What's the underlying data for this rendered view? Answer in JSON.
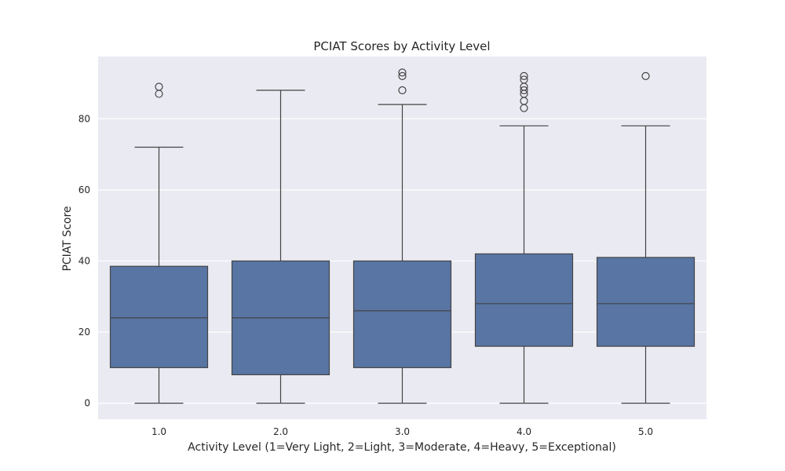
{
  "chart_data": {
    "type": "box",
    "title": "PCIAT Scores by Activity Level",
    "xlabel": "Activity Level (1=Very Light, 2=Light, 3=Moderate, 4=Heavy, 5=Exceptional)",
    "ylabel": "PCIAT Score",
    "categories": [
      "1.0",
      "2.0",
      "3.0",
      "4.0",
      "5.0"
    ],
    "ylim": [
      -4.5,
      97.5
    ],
    "yticks": [
      0,
      20,
      40,
      60,
      80
    ],
    "grid": true,
    "colors": {
      "box": "#5875a4",
      "line": "#444444",
      "background": "#eaeaf2",
      "grid": "#ffffff"
    },
    "boxes": [
      {
        "category": "1.0",
        "whisker_low": 0,
        "q1": 10,
        "median": 24,
        "q3": 38.5,
        "whisker_high": 72,
        "outliers": [
          87,
          89
        ]
      },
      {
        "category": "2.0",
        "whisker_low": 0,
        "q1": 8,
        "median": 24,
        "q3": 40,
        "whisker_high": 88,
        "outliers": []
      },
      {
        "category": "3.0",
        "whisker_low": 0,
        "q1": 10,
        "median": 26,
        "q3": 40,
        "whisker_high": 84,
        "outliers": [
          88,
          92,
          93
        ]
      },
      {
        "category": "4.0",
        "whisker_low": 0,
        "q1": 16,
        "median": 28,
        "q3": 42,
        "whisker_high": 78,
        "outliers": [
          83,
          85,
          87,
          88,
          89,
          91,
          92
        ]
      },
      {
        "category": "5.0",
        "whisker_low": 0,
        "q1": 16,
        "median": 28,
        "q3": 41,
        "whisker_high": 78,
        "outliers": [
          92
        ]
      }
    ]
  }
}
